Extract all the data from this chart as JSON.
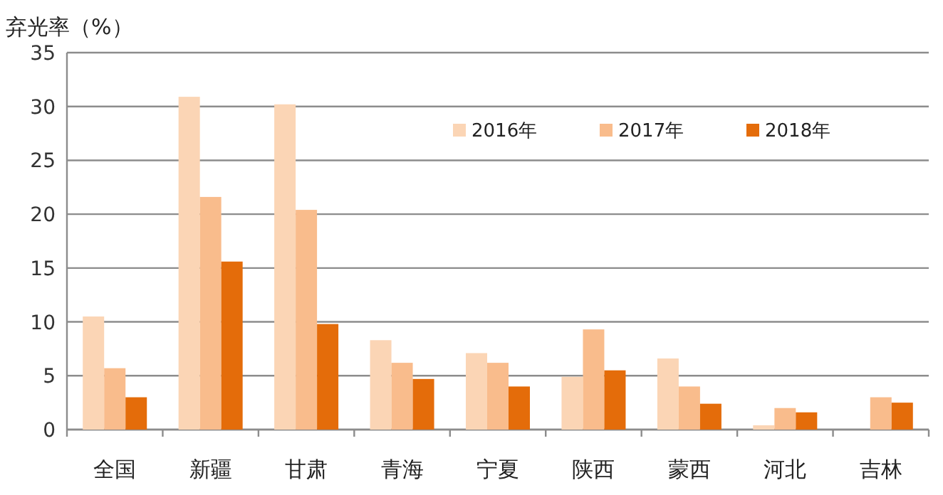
{
  "chart_data": {
    "type": "bar",
    "ylabel": "弃光率（%）",
    "categories": [
      "全国",
      "新疆",
      "甘肃",
      "青海",
      "宁夏",
      "陕西",
      "蒙西",
      "河北",
      "吉林"
    ],
    "series": [
      {
        "name": "2016年",
        "color": "#fbd5b5",
        "values": [
          10.5,
          30.9,
          30.2,
          8.3,
          7.1,
          4.9,
          6.6,
          0.4,
          null
        ]
      },
      {
        "name": "2017年",
        "color": "#f9bc8c",
        "values": [
          5.7,
          21.6,
          20.4,
          6.2,
          6.2,
          9.3,
          4.0,
          2.0,
          3.0
        ]
      },
      {
        "name": "2018年",
        "color": "#e46c0a",
        "values": [
          3.0,
          15.6,
          9.8,
          4.7,
          4.0,
          5.5,
          2.4,
          1.6,
          2.5
        ]
      }
    ],
    "ylim": [
      0,
      35
    ],
    "yticks": [
      0,
      5,
      10,
      15,
      20,
      25,
      30,
      35
    ],
    "grid": "y",
    "legend": "top right"
  }
}
